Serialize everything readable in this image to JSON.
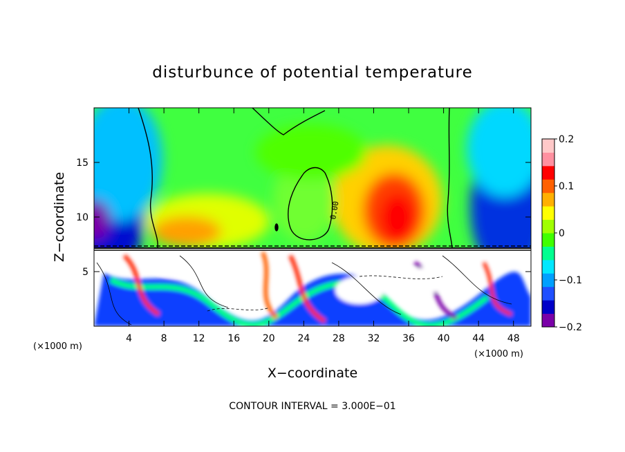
{
  "chart_data": {
    "type": "heatmap",
    "title": "disturbunce of potential temperature",
    "xlabel": "X−coordinate",
    "ylabel": "Z−coordinate",
    "x_unit": "(×1000 m)",
    "x_unit_right": "(×1000 m)",
    "xlim": [
      0,
      50
    ],
    "ylim": [
      0,
      20
    ],
    "x_ticks": [
      "4",
      "8",
      "12",
      "16",
      "20",
      "24",
      "28",
      "32",
      "36",
      "40",
      "44",
      "48"
    ],
    "x_tick_values": [
      4,
      8,
      12,
      16,
      20,
      24,
      28,
      32,
      36,
      40,
      44,
      48
    ],
    "y_ticks": [
      "5",
      "10",
      "15"
    ],
    "y_tick_values": [
      5,
      10,
      15
    ],
    "colorbar": {
      "range": [
        -0.2,
        0.2
      ],
      "ticks": [
        "0.2",
        "0.1",
        "0",
        "−0.1",
        "−0.2"
      ],
      "tick_values": [
        0.2,
        0.1,
        0,
        -0.1,
        -0.2
      ],
      "colors": [
        "#7a00a8",
        "#0000c8",
        "#2050ff",
        "#00a0ff",
        "#00e8ff",
        "#00ff90",
        "#40ff00",
        "#a0ff00",
        "#ffff00",
        "#ffb000",
        "#ff6000",
        "#ff0000",
        "#ff90a0",
        "#ffc8c8"
      ]
    },
    "contour_label": "0.00",
    "annotation": "CONTOUR INTERVAL = 3.000E−01",
    "grid": false,
    "colors": {
      "upper_background": "#40ff40",
      "warm_anomaly": "#ff2000",
      "cold_anomaly": "#1010d0",
      "contour": "#000000"
    }
  }
}
